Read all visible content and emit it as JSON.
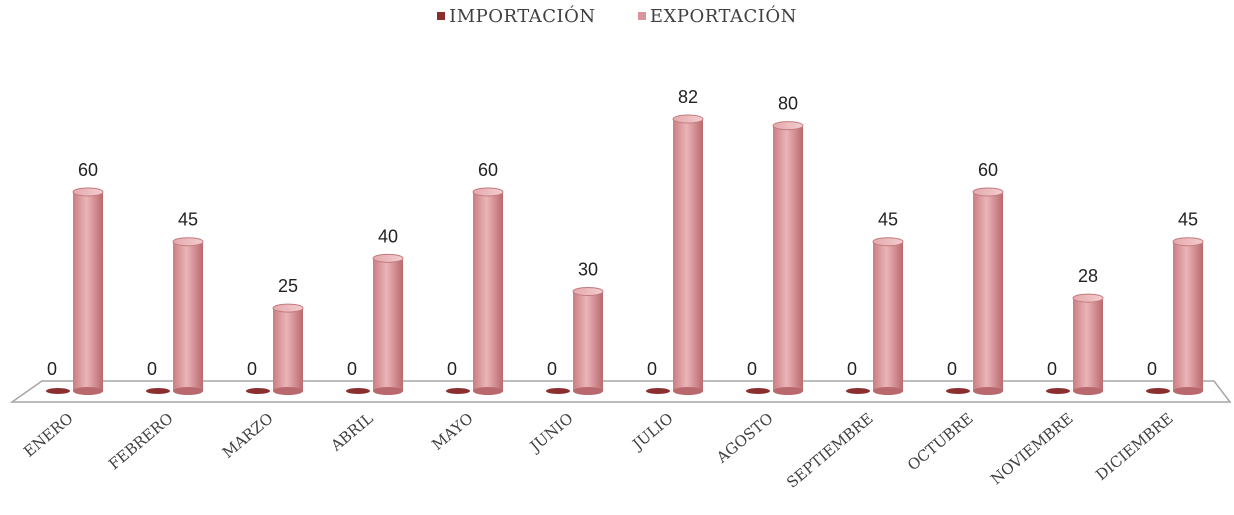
{
  "chart_data": {
    "type": "bar",
    "categories": [
      "ENERO",
      "FEBRERO",
      "MARZO",
      "ABRIL",
      "MAYO",
      "JUNIO",
      "JULIO",
      "AGOSTO",
      "SEPTIEMBRE",
      "OCTUBRE",
      "NOVIEMBRE",
      "DICIEMBRE"
    ],
    "series": [
      {
        "name": "IMPORTACIÓN",
        "color": "#8B2E2E",
        "values": [
          0,
          0,
          0,
          0,
          0,
          0,
          0,
          0,
          0,
          0,
          0,
          0
        ]
      },
      {
        "name": "EXPORTACIÓN",
        "color": "#D9969A",
        "values": [
          60,
          45,
          25,
          40,
          60,
          30,
          82,
          80,
          45,
          60,
          28,
          45
        ]
      }
    ],
    "title": "",
    "xlabel": "",
    "ylabel": "",
    "ylim": [
      0,
      90
    ],
    "grid": false,
    "legend": "top-center",
    "bar_shape": "cylinder-3d",
    "data_labels": true
  }
}
